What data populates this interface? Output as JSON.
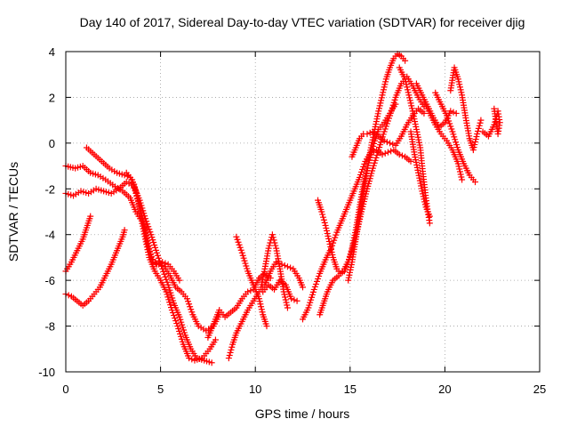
{
  "chart_data": {
    "type": "scatter",
    "title": "Day 140 of 2017, Sidereal Day-to-day VTEC variation (SDTVAR) for receiver djig",
    "xlabel": "GPS time / hours",
    "ylabel": "SDTVAR / TECUs",
    "xlim": [
      0,
      25
    ],
    "ylim": [
      -10,
      4
    ],
    "xticks": [
      0,
      5,
      10,
      15,
      20,
      25
    ],
    "yticks": [
      -10,
      -8,
      -6,
      -4,
      -2,
      0,
      2,
      4
    ],
    "grid": true,
    "marker": "plus",
    "color": "#ff0000",
    "tracks": [
      [
        [
          0.0,
          -1.0
        ],
        [
          0.5,
          -1.1
        ],
        [
          0.9,
          -1.0
        ],
        [
          1.3,
          -1.3
        ],
        [
          1.7,
          -1.4
        ],
        [
          2.1,
          -1.6
        ],
        [
          2.6,
          -1.9
        ],
        [
          3.0,
          -2.1
        ],
        [
          3.4,
          -2.4
        ],
        [
          3.7,
          -3.0
        ],
        [
          4.0,
          -3.4
        ],
        [
          4.2,
          -4.2
        ],
        [
          4.4,
          -5.0
        ],
        [
          4.7,
          -5.6
        ],
        [
          5.0,
          -6.0
        ],
        [
          5.3,
          -6.5
        ],
        [
          5.6,
          -7.3
        ],
        [
          5.9,
          -8.0
        ],
        [
          6.2,
          -8.8
        ],
        [
          6.5,
          -9.4
        ],
        [
          6.8,
          -9.5
        ],
        [
          7.2,
          -9.4
        ],
        [
          7.6,
          -9.0
        ],
        [
          7.9,
          -8.6
        ]
      ],
      [
        [
          0.0,
          -2.2
        ],
        [
          0.4,
          -2.3
        ],
        [
          0.8,
          -2.1
        ],
        [
          1.2,
          -2.2
        ],
        [
          1.6,
          -2.0
        ],
        [
          2.0,
          -2.1
        ],
        [
          2.4,
          -2.2
        ],
        [
          2.8,
          -2.0
        ],
        [
          3.2,
          -1.7
        ],
        [
          3.6,
          -1.9
        ],
        [
          3.9,
          -2.5
        ],
        [
          4.2,
          -3.3
        ],
        [
          4.5,
          -4.0
        ],
        [
          4.8,
          -4.8
        ],
        [
          5.1,
          -5.5
        ],
        [
          5.4,
          -6.2
        ],
        [
          5.7,
          -7.0
        ],
        [
          6.0,
          -7.6
        ],
        [
          6.3,
          -8.4
        ],
        [
          6.6,
          -9.0
        ],
        [
          6.9,
          -9.4
        ],
        [
          7.3,
          -9.5
        ],
        [
          7.7,
          -9.6
        ]
      ],
      [
        [
          1.1,
          -0.2
        ],
        [
          1.5,
          -0.5
        ],
        [
          1.9,
          -0.8
        ],
        [
          2.3,
          -1.1
        ],
        [
          2.7,
          -1.3
        ],
        [
          3.1,
          -1.4
        ],
        [
          3.4,
          -1.5
        ],
        [
          3.6,
          -1.8
        ],
        [
          3.8,
          -2.4
        ],
        [
          4.0,
          -3.2
        ],
        [
          4.2,
          -3.8
        ],
        [
          4.4,
          -4.6
        ],
        [
          4.6,
          -5.2
        ],
        [
          4.9,
          -5.3
        ],
        [
          5.2,
          -5.4
        ],
        [
          5.5,
          -5.8
        ],
        [
          5.8,
          -6.3
        ],
        [
          6.1,
          -6.5
        ],
        [
          6.4,
          -6.8
        ],
        [
          6.7,
          -7.5
        ],
        [
          7.0,
          -8.0
        ],
        [
          7.4,
          -8.2
        ],
        [
          7.8,
          -8.0
        ],
        [
          8.1,
          -7.5
        ]
      ],
      [
        [
          3.2,
          -1.3
        ],
        [
          3.5,
          -1.6
        ],
        [
          3.7,
          -2.2
        ],
        [
          3.9,
          -2.8
        ],
        [
          4.1,
          -3.5
        ],
        [
          4.3,
          -4.4
        ],
        [
          4.5,
          -5.0
        ],
        [
          4.8,
          -5.3
        ],
        [
          5.1,
          -5.2
        ],
        [
          5.4,
          -5.3
        ],
        [
          5.7,
          -5.6
        ],
        [
          6.0,
          -6.0
        ]
      ],
      [
        [
          0.0,
          -5.6
        ],
        [
          0.3,
          -5.2
        ],
        [
          0.6,
          -4.7
        ],
        [
          0.9,
          -4.2
        ],
        [
          1.1,
          -3.7
        ],
        [
          1.3,
          -3.2
        ]
      ],
      [
        [
          0.0,
          -6.6
        ],
        [
          0.3,
          -6.7
        ],
        [
          0.6,
          -6.9
        ],
        [
          0.9,
          -7.1
        ],
        [
          1.2,
          -6.9
        ],
        [
          1.5,
          -6.6
        ],
        [
          1.8,
          -6.3
        ],
        [
          2.1,
          -5.8
        ],
        [
          2.4,
          -5.3
        ],
        [
          2.7,
          -4.7
        ],
        [
          3.0,
          -4.1
        ],
        [
          3.1,
          -3.8
        ]
      ],
      [
        [
          7.5,
          -8.5
        ],
        [
          7.8,
          -7.9
        ],
        [
          8.1,
          -7.3
        ],
        [
          8.4,
          -7.6
        ],
        [
          8.7,
          -7.4
        ],
        [
          9.0,
          -7.2
        ],
        [
          9.3,
          -6.8
        ],
        [
          9.6,
          -6.5
        ],
        [
          9.9,
          -6.4
        ],
        [
          10.2,
          -5.9
        ],
        [
          10.5,
          -5.7
        ],
        [
          10.8,
          -5.9
        ]
      ],
      [
        [
          8.6,
          -9.4
        ],
        [
          8.8,
          -8.8
        ],
        [
          9.0,
          -8.3
        ],
        [
          9.3,
          -7.8
        ],
        [
          9.6,
          -7.3
        ],
        [
          9.9,
          -6.9
        ],
        [
          10.2,
          -6.5
        ],
        [
          10.5,
          -6.2
        ],
        [
          10.8,
          -5.6
        ],
        [
          11.1,
          -5.2
        ],
        [
          11.4,
          -5.3
        ],
        [
          11.7,
          -5.4
        ],
        [
          12.0,
          -5.5
        ],
        [
          12.3,
          -5.9
        ],
        [
          12.5,
          -6.3
        ]
      ],
      [
        [
          9.0,
          -4.1
        ],
        [
          9.3,
          -4.8
        ],
        [
          9.6,
          -5.6
        ],
        [
          9.9,
          -6.2
        ],
        [
          10.2,
          -6.8
        ],
        [
          10.4,
          -7.5
        ],
        [
          10.6,
          -8.0
        ]
      ],
      [
        [
          10.4,
          -6.5
        ],
        [
          10.7,
          -6.2
        ],
        [
          11.0,
          -6.4
        ],
        [
          11.3,
          -6.0
        ],
        [
          11.6,
          -6.2
        ],
        [
          11.9,
          -6.8
        ],
        [
          12.2,
          -6.9
        ]
      ],
      [
        [
          10.3,
          -6.3
        ],
        [
          10.5,
          -5.5
        ],
        [
          10.7,
          -4.6
        ],
        [
          10.9,
          -4.0
        ],
        [
          11.1,
          -4.6
        ],
        [
          11.3,
          -5.5
        ],
        [
          11.5,
          -6.5
        ],
        [
          11.7,
          -7.2
        ]
      ],
      [
        [
          12.5,
          -7.7
        ],
        [
          12.8,
          -7.2
        ],
        [
          13.1,
          -6.4
        ],
        [
          13.4,
          -5.7
        ],
        [
          13.7,
          -5.1
        ],
        [
          14.0,
          -4.6
        ],
        [
          14.3,
          -3.9
        ],
        [
          14.6,
          -3.3
        ],
        [
          14.9,
          -2.7
        ],
        [
          15.2,
          -2.1
        ],
        [
          15.5,
          -1.5
        ],
        [
          15.8,
          -0.8
        ],
        [
          16.1,
          -0.4
        ],
        [
          16.4,
          -0.3
        ],
        [
          16.7,
          -0.5
        ],
        [
          17.0,
          -0.4
        ],
        [
          17.3,
          -0.3
        ],
        [
          17.6,
          -0.5
        ],
        [
          17.9,
          -0.6
        ],
        [
          18.2,
          -0.8
        ]
      ],
      [
        [
          13.3,
          -2.5
        ],
        [
          13.5,
          -3.0
        ],
        [
          13.7,
          -3.6
        ],
        [
          13.9,
          -4.3
        ],
        [
          14.1,
          -5.0
        ],
        [
          14.3,
          -5.5
        ],
        [
          14.5,
          -5.7
        ],
        [
          14.7,
          -5.6
        ],
        [
          14.9,
          -5.2
        ],
        [
          15.1,
          -4.6
        ],
        [
          15.3,
          -3.8
        ],
        [
          15.5,
          -2.8
        ],
        [
          15.7,
          -1.8
        ],
        [
          15.9,
          -1.1
        ],
        [
          16.1,
          -0.5
        ],
        [
          16.3,
          0.1
        ],
        [
          16.5,
          0.6
        ],
        [
          16.8,
          0.9
        ],
        [
          17.1,
          1.3
        ],
        [
          17.4,
          1.7
        ]
      ],
      [
        [
          13.4,
          -7.5
        ],
        [
          13.6,
          -7.0
        ],
        [
          13.8,
          -6.5
        ],
        [
          14.1,
          -6.0
        ],
        [
          14.4,
          -5.8
        ],
        [
          14.7,
          -5.5
        ],
        [
          15.0,
          -5.0
        ],
        [
          15.3,
          -4.1
        ],
        [
          15.6,
          -3.0
        ],
        [
          15.9,
          -2.0
        ],
        [
          16.2,
          -1.1
        ],
        [
          16.5,
          -0.3
        ],
        [
          16.8,
          0.5
        ],
        [
          17.1,
          1.2
        ],
        [
          17.4,
          2.0
        ],
        [
          17.7,
          2.6
        ],
        [
          18.0,
          2.9
        ],
        [
          18.3,
          2.5
        ],
        [
          18.6,
          2.0
        ],
        [
          18.9,
          1.6
        ]
      ],
      [
        [
          14.9,
          -6.0
        ],
        [
          15.1,
          -5.2
        ],
        [
          15.3,
          -4.2
        ],
        [
          15.5,
          -3.2
        ],
        [
          15.7,
          -2.2
        ],
        [
          15.9,
          -1.2
        ],
        [
          16.1,
          -0.2
        ],
        [
          16.3,
          0.6
        ],
        [
          16.5,
          1.4
        ],
        [
          16.7,
          2.1
        ],
        [
          16.9,
          2.8
        ],
        [
          17.1,
          3.3
        ],
        [
          17.3,
          3.7
        ],
        [
          17.5,
          3.9
        ],
        [
          17.7,
          3.8
        ],
        [
          17.9,
          3.6
        ]
      ],
      [
        [
          15.1,
          -0.6
        ],
        [
          15.3,
          -0.2
        ],
        [
          15.5,
          0.2
        ],
        [
          15.7,
          0.4
        ],
        [
          15.9,
          0.4
        ],
        [
          16.2,
          0.5
        ],
        [
          16.5,
          0.3
        ],
        [
          16.8,
          0.1
        ],
        [
          17.1,
          0.0
        ],
        [
          17.4,
          -0.1
        ],
        [
          17.7,
          0.3
        ],
        [
          18.0,
          0.8
        ],
        [
          18.3,
          1.2
        ],
        [
          18.6,
          1.5
        ],
        [
          18.9,
          1.3
        ]
      ],
      [
        [
          17.6,
          3.3
        ],
        [
          17.9,
          2.8
        ],
        [
          18.1,
          2.1
        ],
        [
          18.3,
          1.4
        ],
        [
          18.5,
          0.6
        ],
        [
          18.7,
          -0.2
        ],
        [
          18.8,
          -1.0
        ],
        [
          18.9,
          -1.7
        ],
        [
          19.0,
          -2.4
        ],
        [
          19.1,
          -3.0
        ],
        [
          19.2,
          -3.5
        ]
      ],
      [
        [
          18.2,
          0.5
        ],
        [
          18.4,
          -0.5
        ],
        [
          18.6,
          -1.3
        ],
        [
          18.8,
          -2.1
        ],
        [
          19.0,
          -2.8
        ],
        [
          19.2,
          -3.2
        ]
      ],
      [
        [
          18.5,
          2.6
        ],
        [
          18.8,
          2.1
        ],
        [
          19.1,
          1.6
        ],
        [
          19.4,
          1.1
        ],
        [
          19.7,
          0.7
        ],
        [
          20.0,
          0.9
        ],
        [
          20.3,
          1.4
        ],
        [
          20.6,
          1.3
        ]
      ],
      [
        [
          18.9,
          1.8
        ],
        [
          19.2,
          1.3
        ],
        [
          19.5,
          0.8
        ],
        [
          19.8,
          0.4
        ],
        [
          20.1,
          0.1
        ],
        [
          20.4,
          -0.3
        ],
        [
          20.7,
          -0.9
        ],
        [
          20.9,
          -1.6
        ]
      ],
      [
        [
          19.5,
          2.2
        ],
        [
          19.8,
          1.7
        ],
        [
          20.1,
          1.2
        ],
        [
          20.4,
          0.5
        ],
        [
          20.7,
          -0.3
        ],
        [
          21.0,
          -0.9
        ],
        [
          21.3,
          -1.4
        ],
        [
          21.6,
          -1.7
        ]
      ],
      [
        [
          20.3,
          2.3
        ],
        [
          20.5,
          3.3
        ],
        [
          20.7,
          2.8
        ],
        [
          20.9,
          2.1
        ],
        [
          21.1,
          1.1
        ],
        [
          21.3,
          0.2
        ],
        [
          21.5,
          -0.3
        ],
        [
          21.7,
          0.4
        ],
        [
          21.9,
          1.0
        ]
      ],
      [
        [
          22.0,
          0.5
        ],
        [
          22.3,
          0.3
        ],
        [
          22.6,
          0.8
        ],
        [
          22.8,
          1.4
        ],
        [
          22.9,
          0.9
        ],
        [
          22.8,
          0.4
        ],
        [
          22.6,
          1.5
        ]
      ]
    ]
  }
}
